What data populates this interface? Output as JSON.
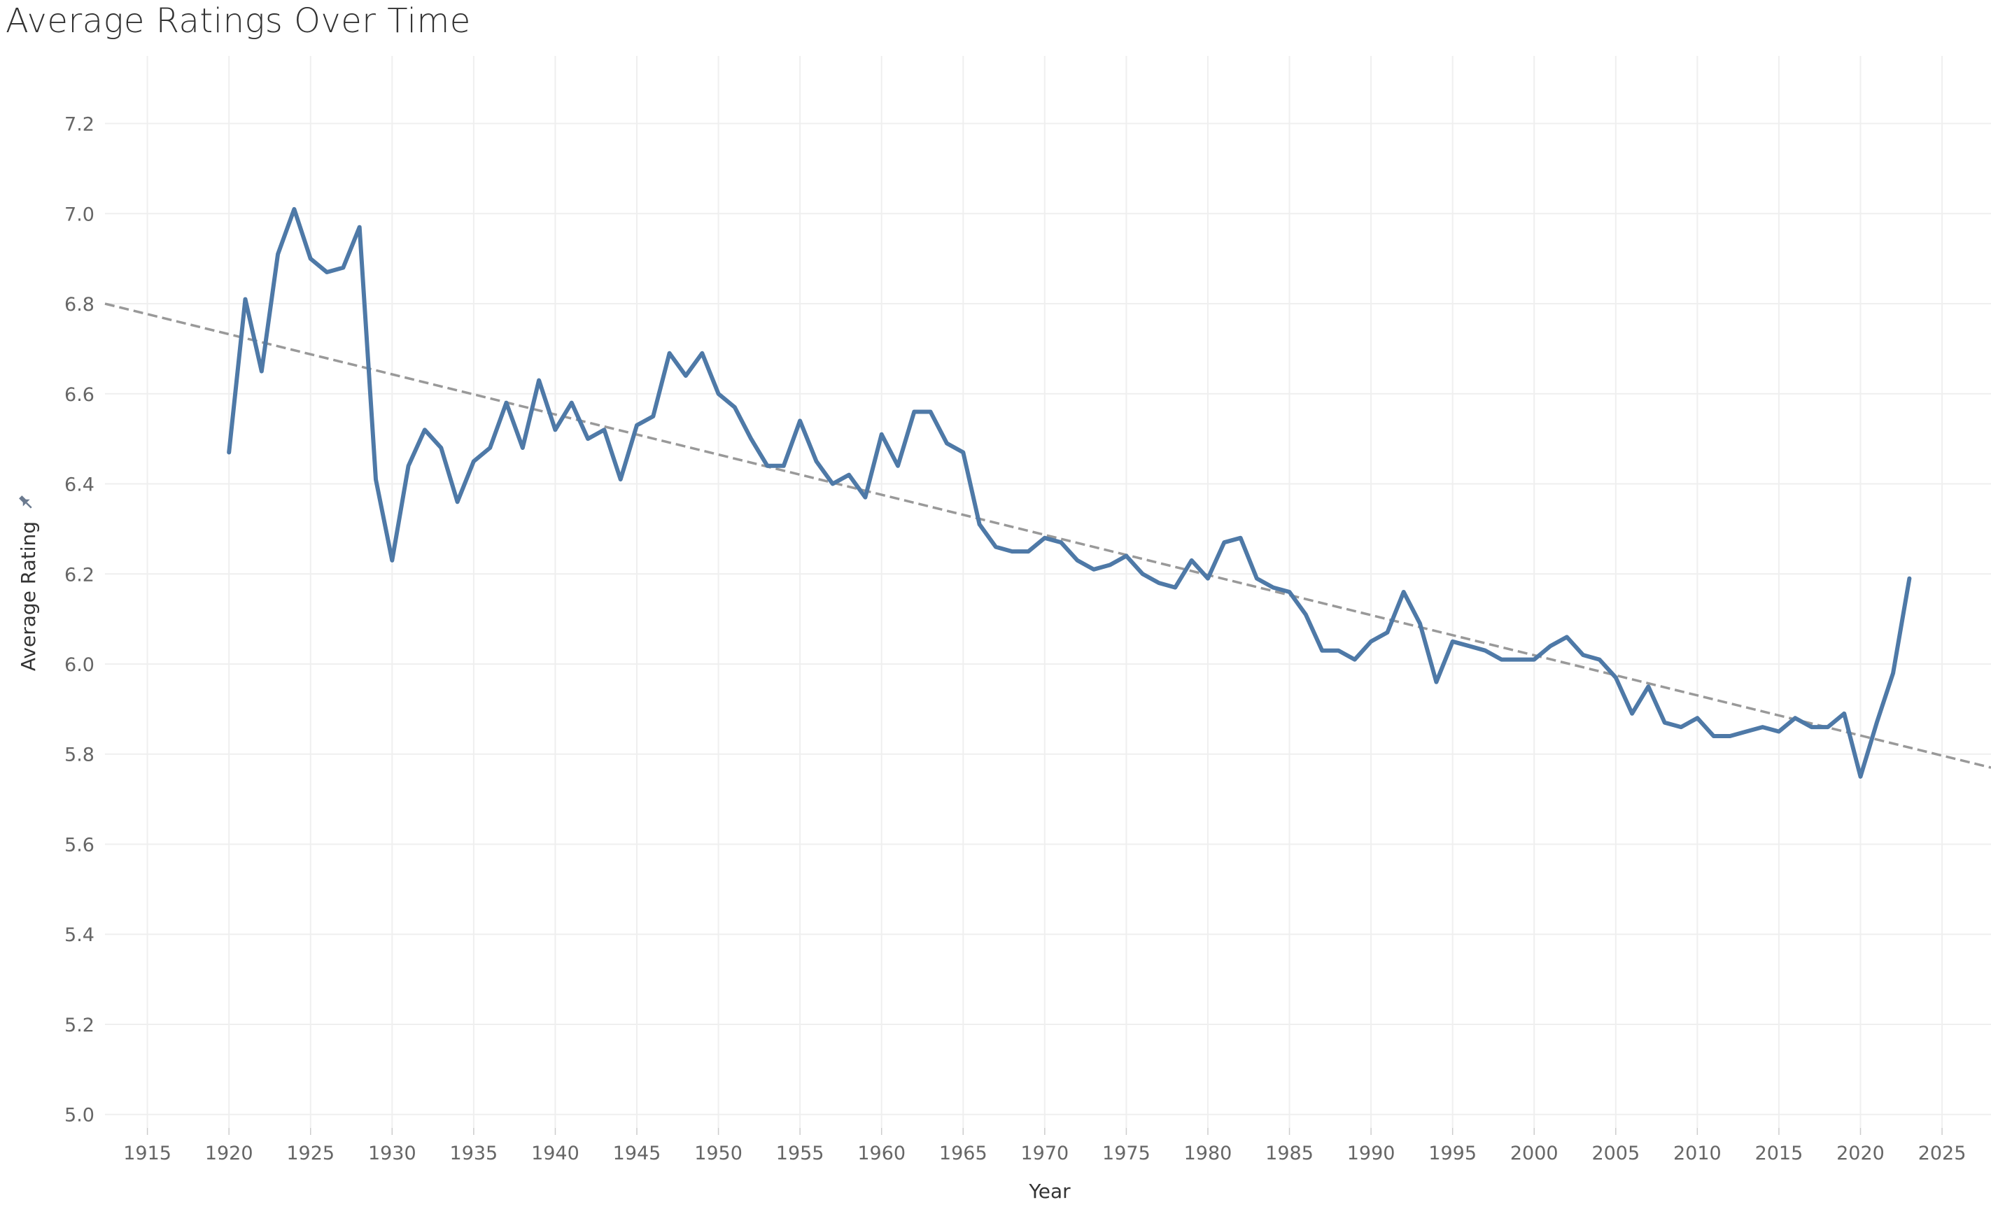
{
  "page_title": "Average Ratings Over Time",
  "chart_data": {
    "type": "line",
    "title": "Average Ratings Over Time",
    "xlabel": "Year",
    "ylabel": "Average Rating",
    "xlim": [
      1912.4,
      2028
    ],
    "ylim": [
      4.97,
      7.35
    ],
    "x_ticks": [
      1915,
      1920,
      1925,
      1930,
      1935,
      1940,
      1945,
      1950,
      1955,
      1960,
      1965,
      1970,
      1975,
      1980,
      1985,
      1990,
      1995,
      2000,
      2005,
      2010,
      2015,
      2020,
      2025
    ],
    "y_ticks": [
      "5.0",
      "5.2",
      "5.4",
      "5.6",
      "5.8",
      "6.0",
      "6.2",
      "6.4",
      "6.6",
      "6.8",
      "7.0",
      "7.2"
    ],
    "grid": true,
    "colors": {
      "series": "#4e79a7",
      "trend": "#999999",
      "grid": "#efefef"
    },
    "series": [
      {
        "x": [
          1920,
          1921,
          1922,
          1923,
          1924,
          1925,
          1926,
          1927,
          1928,
          1929,
          1930,
          1931,
          1932,
          1933,
          1934,
          1935,
          1936,
          1937,
          1938,
          1939,
          1940,
          1941,
          1942,
          1943,
          1944,
          1945,
          1946,
          1947,
          1948,
          1949,
          1950,
          1951,
          1952,
          1953,
          1954,
          1955,
          1956,
          1957,
          1958,
          1959,
          1960,
          1961,
          1962,
          1963,
          1964,
          1965,
          1966,
          1967,
          1968,
          1969,
          1970,
          1971,
          1972,
          1973,
          1974,
          1975,
          1976,
          1977,
          1978,
          1979,
          1980,
          1981,
          1982,
          1983,
          1984,
          1985,
          1986,
          1987,
          1988,
          1989,
          1990,
          1991,
          1992,
          1993,
          1994,
          1995,
          1996,
          1997,
          1998,
          1999,
          2000,
          2001,
          2002,
          2003,
          2004,
          2005,
          2006,
          2007,
          2008,
          2009,
          2010,
          2011,
          2012,
          2013,
          2014,
          2015,
          2016,
          2017,
          2018,
          2019,
          2020,
          2021,
          2022,
          2023
        ],
        "values": [
          6.47,
          6.81,
          6.65,
          6.91,
          7.01,
          6.9,
          6.87,
          6.88,
          6.97,
          6.41,
          6.23,
          6.44,
          6.52,
          6.48,
          6.36,
          6.45,
          6.48,
          6.58,
          6.48,
          6.63,
          6.52,
          6.58,
          6.5,
          6.52,
          6.41,
          6.53,
          6.55,
          6.69,
          6.64,
          6.69,
          6.6,
          6.57,
          6.5,
          6.44,
          6.44,
          6.54,
          6.45,
          6.4,
          6.42,
          6.37,
          6.51,
          6.44,
          6.56,
          6.56,
          6.49,
          6.47,
          6.31,
          6.26,
          6.25,
          6.25,
          6.28,
          6.27,
          6.23,
          6.21,
          6.22,
          6.24,
          6.2,
          6.18,
          6.17,
          6.23,
          6.19,
          6.27,
          6.28,
          6.19,
          6.17,
          6.16,
          6.11,
          6.03,
          6.03,
          6.01,
          6.05,
          6.07,
          6.16,
          6.09,
          5.96,
          6.05,
          6.04,
          6.03,
          6.01,
          6.01,
          6.01,
          6.04,
          6.06,
          6.02,
          6.01,
          5.97,
          5.89,
          5.95,
          5.87,
          5.86,
          5.88,
          5.84,
          5.84,
          5.85,
          5.86,
          5.85,
          5.88,
          5.86,
          5.86,
          5.89,
          5.75,
          5.87,
          5.98,
          6.19
        ]
      }
    ],
    "trend_line": {
      "style": "dashed",
      "x": [
        1912.4,
        2028
      ],
      "values": [
        6.8,
        5.77
      ]
    }
  }
}
